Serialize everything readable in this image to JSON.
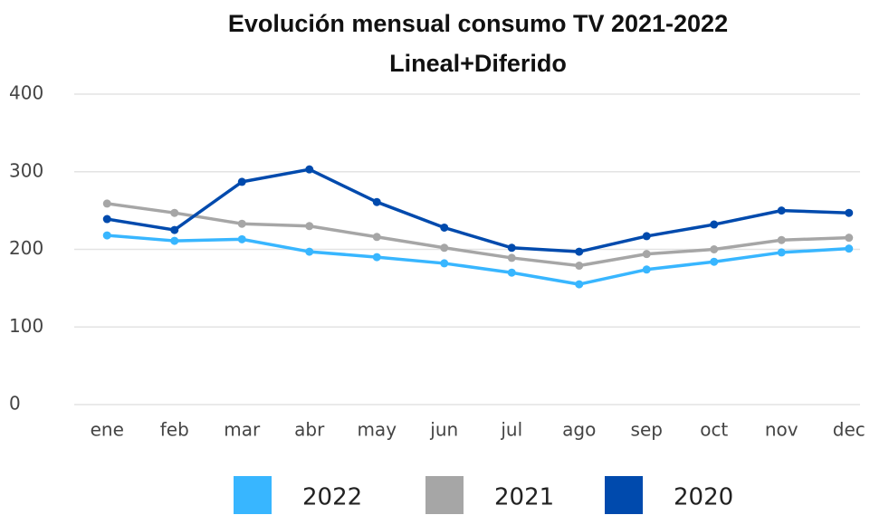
{
  "chart_data": {
    "type": "line",
    "title": [
      "Evolución mensual consumo TV 2021-2022",
      "Lineal+Diferido"
    ],
    "categories": [
      "ene",
      "feb",
      "mar",
      "abr",
      "may",
      "jun",
      "jul",
      "ago",
      "sep",
      "oct",
      "nov",
      "dec"
    ],
    "series": [
      {
        "name": "2022",
        "color": "#38b6ff",
        "values": [
          218,
          211,
          213,
          197,
          190,
          182,
          170,
          155,
          174,
          184,
          196,
          201
        ]
      },
      {
        "name": "2021",
        "color": "#a6a6a6",
        "values": [
          259,
          247,
          233,
          230,
          216,
          202,
          189,
          179,
          194,
          200,
          212,
          215
        ]
      },
      {
        "name": "2020",
        "color": "#004aad",
        "values": [
          239,
          225,
          287,
          303,
          261,
          228,
          202,
          197,
          217,
          232,
          250,
          247
        ]
      }
    ],
    "ylim": [
      0,
      400
    ],
    "yticks": [
      0,
      100,
      200,
      300,
      400
    ],
    "grid": true,
    "legend": "bottom"
  }
}
